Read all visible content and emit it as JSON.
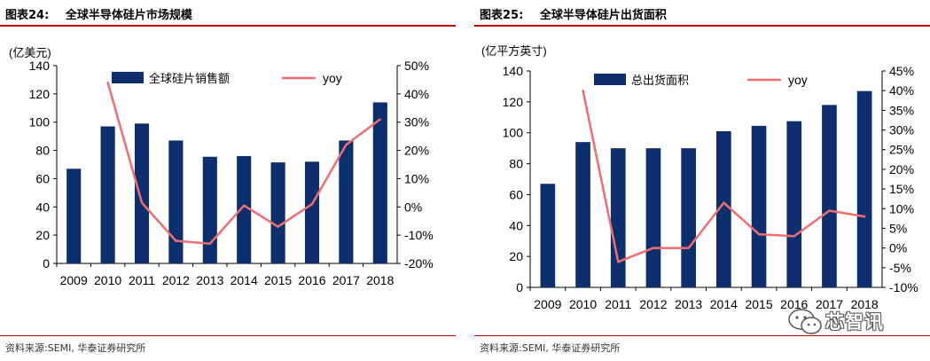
{
  "chart_data": [
    {
      "type": "bar",
      "figure_no": "图表24:",
      "title": "全球半导体硅片市场规模",
      "unit_label": "(亿美元)",
      "categories": [
        "2009",
        "2010",
        "2011",
        "2012",
        "2013",
        "2014",
        "2015",
        "2016",
        "2017",
        "2018"
      ],
      "series": [
        {
          "name": "全球硅片销售额",
          "type": "bar",
          "axis": "left",
          "values": [
            67,
            97,
            99,
            87,
            75.5,
            76,
            71.5,
            72,
            87,
            114
          ]
        },
        {
          "name": "yoy",
          "type": "line",
          "axis": "right",
          "values": [
            null,
            44,
            1.5,
            -12,
            -13,
            0.5,
            -7,
            1,
            22,
            31
          ]
        }
      ],
      "y_left": {
        "min": 0,
        "max": 140,
        "ticks": [
          0,
          20,
          40,
          60,
          80,
          100,
          120,
          140
        ]
      },
      "y_right": {
        "min": -20,
        "max": 50,
        "ticks": [
          "-20%",
          "-10%",
          "0%",
          "10%",
          "20%",
          "30%",
          "40%",
          "50%"
        ]
      },
      "legend": "top",
      "grid": false,
      "source": "资料来源:SEMI, 华泰证券研究所"
    },
    {
      "type": "bar",
      "figure_no": "图表25:",
      "title": "全球半导体硅片出货面积",
      "unit_label": "(亿平方英寸)",
      "categories": [
        "2009",
        "2010",
        "2011",
        "2012",
        "2013",
        "2014",
        "2015",
        "2016",
        "2017",
        "2018"
      ],
      "series": [
        {
          "name": "总出货面积",
          "type": "bar",
          "axis": "left",
          "values": [
            67,
            94,
            90,
            90,
            90,
            101,
            104.5,
            107.5,
            118,
            127
          ]
        },
        {
          "name": "yoy",
          "type": "line",
          "axis": "right",
          "values": [
            null,
            40,
            -3.5,
            0,
            0,
            11.5,
            3.5,
            3,
            9.5,
            8
          ]
        }
      ],
      "y_left": {
        "min": 0,
        "max": 140,
        "ticks": [
          0,
          20,
          40,
          60,
          80,
          100,
          120,
          140
        ]
      },
      "y_right": {
        "min": -10,
        "max": 45,
        "ticks": [
          "-10%",
          "-5%",
          "0%",
          "5%",
          "10%",
          "15%",
          "20%",
          "25%",
          "30%",
          "35%",
          "40%",
          "45%"
        ]
      },
      "legend": "top",
      "grid": false,
      "source": "资料来源:SEMI, 华泰证券研究所"
    }
  ],
  "colors": {
    "bar": "#0d2f6e",
    "line": "#f26d6f",
    "rule": "#c00000",
    "axis": "#000000"
  },
  "watermark": {
    "text": "芯智讯",
    "icon": "wechat-bubble-icon"
  }
}
